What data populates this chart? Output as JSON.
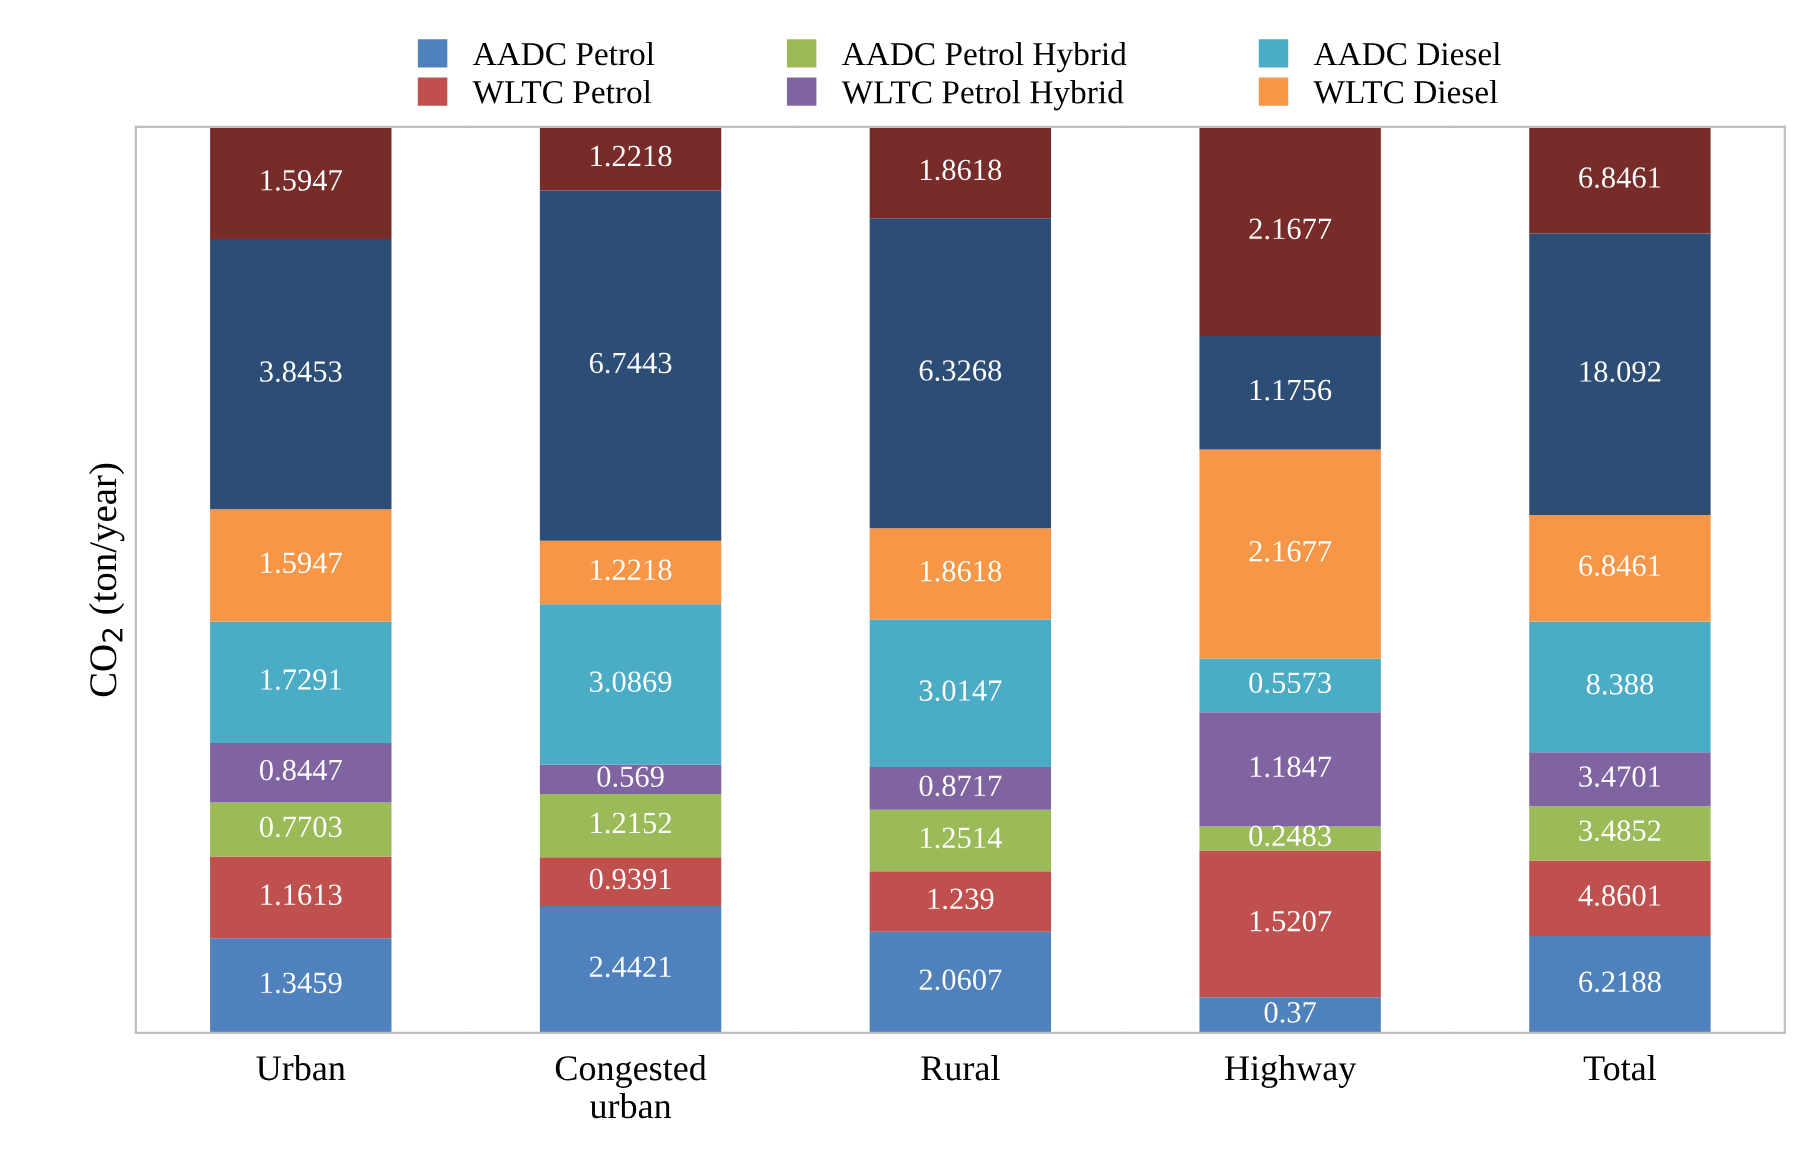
{
  "chart_data": [
    {
      "type": "bar",
      "stacked": true,
      "ylabel": "CO$_{2}$ (ton/year)",
      "tick_labels": "x",
      "legend": "top",
      "data_labels": true,
      "categories": [
        "Urban"
      ],
      "series": [
        {
          "name": "AADC Petrol",
          "color": "#4f81bd",
          "values": [
            1.3459
          ]
        },
        {
          "name": "WLTC Petrol",
          "color": "#c0504d",
          "values": [
            1.1613
          ]
        },
        {
          "name": "AADC Petrol Hybrid",
          "color": "#9bbb59",
          "values": [
            0.7703
          ]
        },
        {
          "name": "WLTC Petrol Hybrid",
          "color": "#8064a2",
          "values": [
            0.8447
          ]
        },
        {
          "name": "AADC Diesel",
          "color": "#4bacc6",
          "values": [
            1.7291
          ]
        },
        {
          "name": "WLTC Diesel",
          "color": "#f79646",
          "values": [
            1.5947
          ]
        },
        {
          "color": "#2c4d75",
          "values": [
            3.8453
          ]
        },
        {
          "color": "#772c2a",
          "values": [
            1.5947
          ]
        }
      ]
    },
    {
      "type": "bar",
      "stacked": true,
      "tick_labels": "x",
      "data_labels": true,
      "categories": [
        "Congested\nurban"
      ],
      "series": [
        {
          "color": "#4f81bd",
          "values": [
            2.4421
          ]
        },
        {
          "color": "#c0504d",
          "values": [
            0.9391
          ]
        },
        {
          "color": "#9bbb59",
          "values": [
            1.2152
          ]
        },
        {
          "color": "#8064a2",
          "values": [
            0.569
          ]
        },
        {
          "color": "#4bacc6",
          "values": [
            3.0869
          ]
        },
        {
          "color": "#f79646",
          "values": [
            1.2218
          ]
        },
        {
          "color": "#2c4d75",
          "values": [
            6.7443
          ]
        },
        {
          "color": "#772c2a",
          "values": [
            1.2218
          ]
        }
      ]
    },
    {
      "type": "bar",
      "stacked": true,
      "tick_labels": "x",
      "data_labels": true,
      "categories": [
        "Rural"
      ],
      "series": [
        {
          "color": "#4f81bd",
          "values": [
            2.0607
          ]
        },
        {
          "color": "#c0504d",
          "values": [
            1.239
          ]
        },
        {
          "color": "#9bbb59",
          "values": [
            1.2514
          ]
        },
        {
          "color": "#8064a2",
          "values": [
            0.8717
          ]
        },
        {
          "color": "#4bacc6",
          "values": [
            3.0147
          ]
        },
        {
          "color": "#f79646",
          "values": [
            1.8618
          ]
        },
        {
          "color": "#2c4d75",
          "values": [
            6.3268
          ]
        },
        {
          "color": "#772c2a",
          "values": [
            1.8618
          ]
        }
      ]
    },
    {
      "type": "bar",
      "stacked": true,
      "tick_labels": "x",
      "data_labels": true,
      "categories": [
        "Highway"
      ],
      "series": [
        {
          "color": "#4f81bd",
          "values": [
            0.37
          ]
        },
        {
          "color": "#c0504d",
          "values": [
            1.5207
          ]
        },
        {
          "color": "#9bbb59",
          "values": [
            0.2483
          ]
        },
        {
          "color": "#8064a2",
          "values": [
            1.1847
          ]
        },
        {
          "color": "#4bacc6",
          "values": [
            0.5573
          ]
        },
        {
          "color": "#f79646",
          "values": [
            2.1677
          ]
        },
        {
          "color": "#2c4d75",
          "values": [
            1.1756
          ]
        },
        {
          "color": "#772c2a",
          "values": [
            2.1677
          ]
        }
      ]
    },
    {
      "type": "bar",
      "stacked": true,
      "tick_labels": "x",
      "data_labels": true,
      "categories": [
        "Total"
      ],
      "series": [
        {
          "color": "#4f81bd",
          "values": [
            6.2188
          ]
        },
        {
          "color": "#c0504d",
          "values": [
            4.8601
          ]
        },
        {
          "color": "#9bbb59",
          "values": [
            3.4852
          ]
        },
        {
          "color": "#8064a2",
          "values": [
            3.4701
          ]
        },
        {
          "color": "#4bacc6",
          "values": [
            8.388
          ]
        },
        {
          "color": "#f79646",
          "values": [
            6.8461
          ]
        },
        {
          "color": "#2c4d75",
          "values": [
            18.092
          ]
        },
        {
          "color": "#772c2a",
          "values": [
            6.8461
          ]
        }
      ]
    }
  ]
}
